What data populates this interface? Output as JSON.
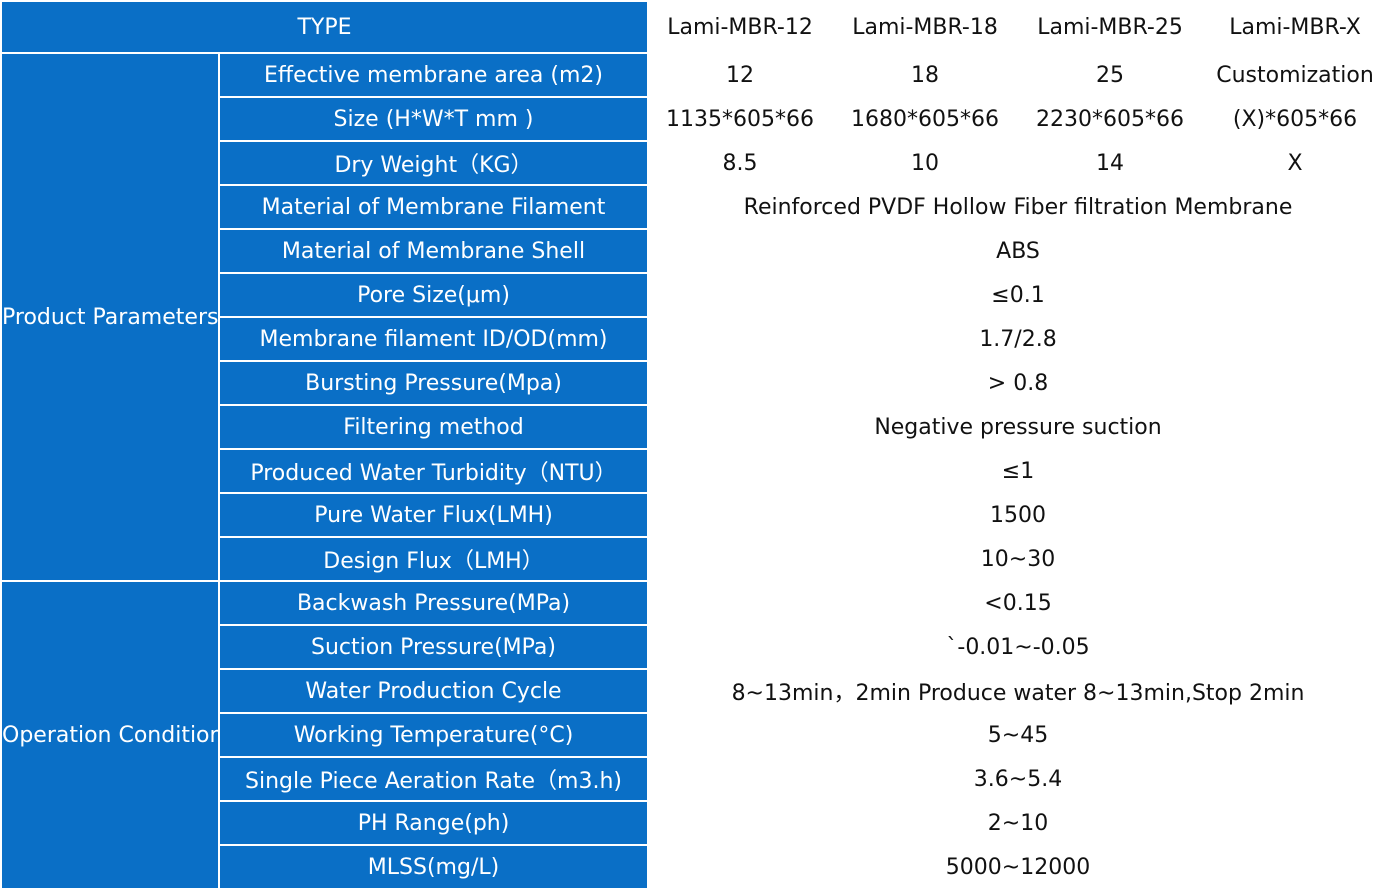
{
  "header": {
    "type_label": "TYPE",
    "models": [
      "Lami-MBR-12",
      "Lami-MBR-18",
      "Lami-MBR-25",
      "Lami-MBR-X"
    ]
  },
  "groups": {
    "product": "Product Parameters",
    "operation": "Operation Condition"
  },
  "rows": [
    {
      "label": "Effective membrane area (m2)",
      "values": [
        "12",
        "18",
        "25",
        "Customization"
      ]
    },
    {
      "label": "Size (H*W*T mm )",
      "values": [
        "1135*605*66",
        "1680*605*66",
        "2230*605*66",
        "(X)*605*66"
      ]
    },
    {
      "label": "Dry Weight（KG）",
      "values": [
        "8.5",
        "10",
        "14",
        "X"
      ]
    },
    {
      "label": "Material of Membrane Filament",
      "value": "Reinforced PVDF Hollow Fiber filtration Membrane"
    },
    {
      "label": "Material of Membrane Shell",
      "value": "ABS"
    },
    {
      "label": "Pore Size(μm)",
      "value": "≤0.1"
    },
    {
      "label": "Membrane filament ID/OD(mm)",
      "value": "1.7/2.8"
    },
    {
      "label": "Bursting Pressure(Mpa)",
      "value": "> 0.8"
    },
    {
      "label": "Filtering method",
      "value": "Negative pressure suction"
    },
    {
      "label": "Produced Water Turbidity（NTU）",
      "value": "≤1"
    },
    {
      "label": "Pure Water Flux(LMH)",
      "value": "1500"
    },
    {
      "label": "Design Flux（LMH）",
      "value": "10~30"
    },
    {
      "label": "Backwash Pressure(MPa)",
      "value": "<0.15"
    },
    {
      "label": "Suction Pressure(MPa)",
      "value": "`-0.01~-0.05"
    },
    {
      "label": "Water Production Cycle",
      "value": "8~13min，2min Produce water 8~13min,Stop 2min"
    },
    {
      "label": "Working Temperature(°C)",
      "value": "5~45"
    },
    {
      "label": "Single Piece Aeration Rate（m3.h)",
      "value": "3.6~5.4"
    },
    {
      "label": "PH Range(ph)",
      "value": "2~10"
    },
    {
      "label": "MLSS(mg/L)",
      "value": "5000~12000"
    }
  ]
}
